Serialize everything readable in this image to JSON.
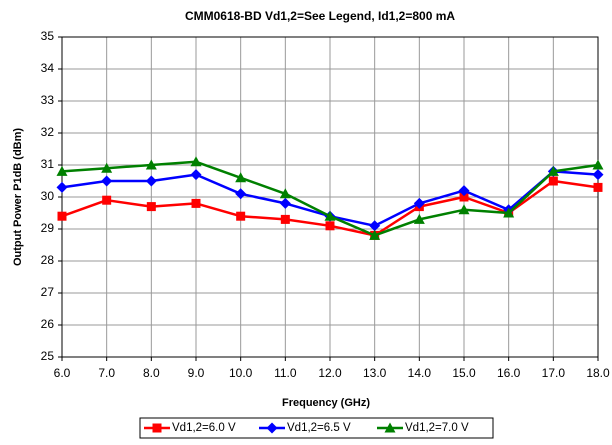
{
  "chart_data": {
    "type": "line",
    "title": "CMM0618-BD Vd1,2=See Legend, Id1,2=800 mA",
    "xlabel": "Frequency (GHz)",
    "ylabel": "Output Power P1dB (dBm)",
    "x": [
      6,
      7,
      8,
      9,
      10,
      11,
      12,
      13,
      14,
      15,
      16,
      17,
      18
    ],
    "series": [
      {
        "name": "Vd1,2=6.0 V",
        "color": "#ff0000",
        "marker": "square",
        "values": [
          29.4,
          29.9,
          29.7,
          29.8,
          29.4,
          29.3,
          29.1,
          28.8,
          29.7,
          30.0,
          29.5,
          30.5,
          30.3
        ]
      },
      {
        "name": "Vd1,2=6.5 V",
        "color": "#0000ff",
        "marker": "diamond",
        "values": [
          30.3,
          30.5,
          30.5,
          30.7,
          30.1,
          29.8,
          29.4,
          29.1,
          29.8,
          30.2,
          29.6,
          30.8,
          30.7
        ]
      },
      {
        "name": "Vd1,2=7.0 V",
        "color": "#008000",
        "marker": "triangle",
        "values": [
          30.8,
          30.9,
          31.0,
          31.1,
          30.6,
          30.1,
          29.4,
          28.8,
          29.3,
          29.6,
          29.5,
          30.8,
          31.0
        ]
      }
    ],
    "xlim": [
      6,
      18
    ],
    "xticks": [
      {
        "value": 6,
        "label": "6.0"
      },
      {
        "value": 7,
        "label": "7.0"
      },
      {
        "value": 8,
        "label": "8.0"
      },
      {
        "value": 9,
        "label": "9.0"
      },
      {
        "value": 10,
        "label": "10.0"
      },
      {
        "value": 11,
        "label": "11.0"
      },
      {
        "value": 12,
        "label": "12.0"
      },
      {
        "value": 13,
        "label": "13.0"
      },
      {
        "value": 14,
        "label": "14.0"
      },
      {
        "value": 15,
        "label": "15.0"
      },
      {
        "value": 16,
        "label": "16.0"
      },
      {
        "value": 17,
        "label": "17.0"
      },
      {
        "value": 18,
        "label": "18.0"
      }
    ],
    "ylim": [
      25,
      35
    ],
    "yticks": [
      25,
      26,
      27,
      28,
      29,
      30,
      31,
      32,
      33,
      34,
      35
    ],
    "grid": true,
    "legend": "bottom"
  }
}
